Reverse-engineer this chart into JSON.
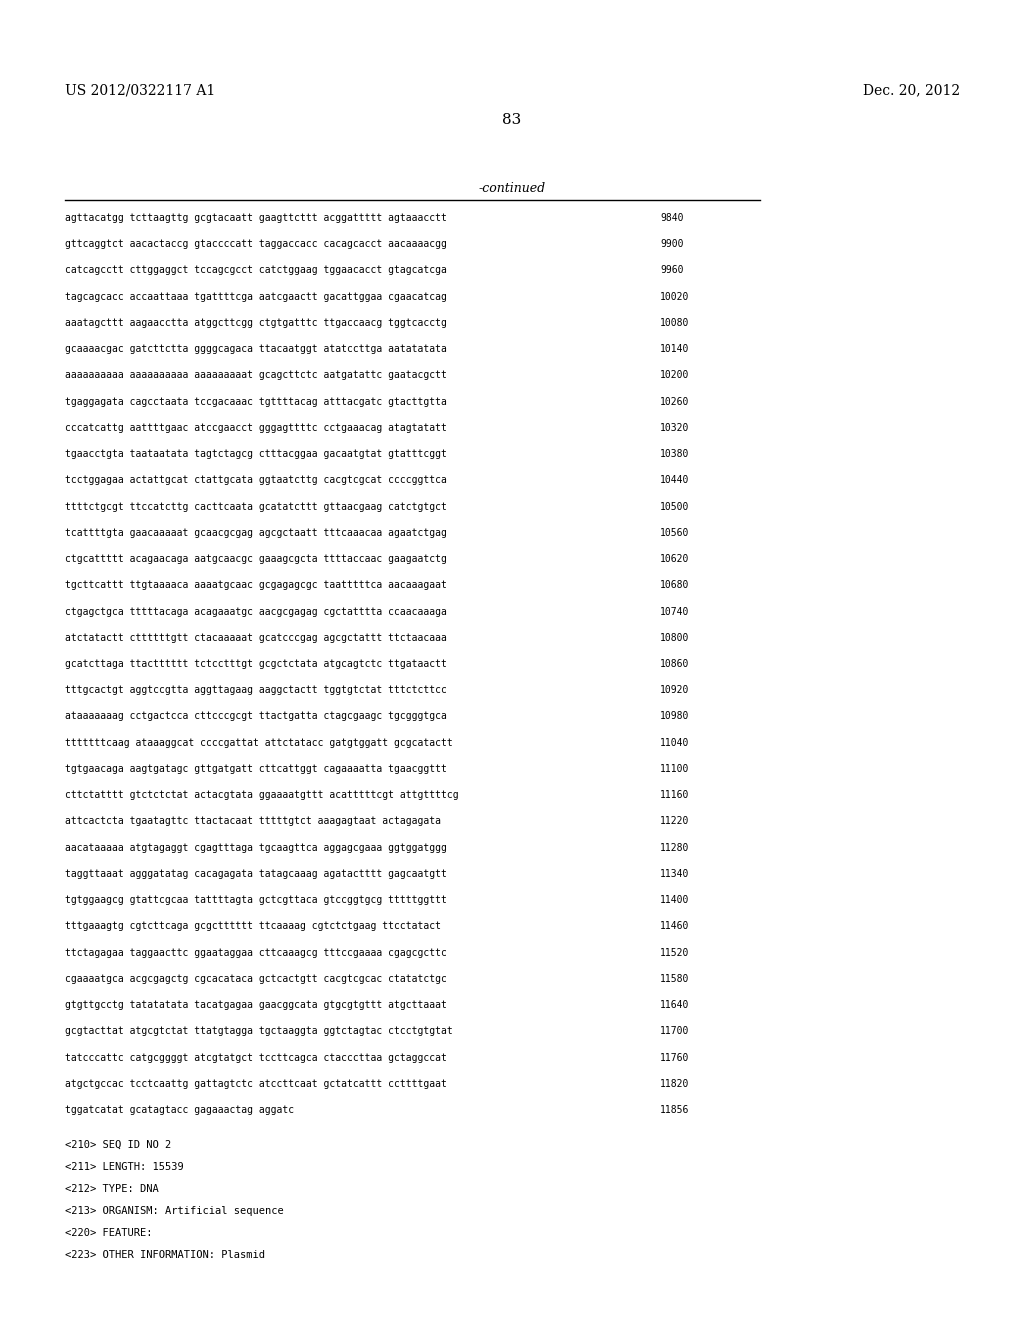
{
  "background_color": "#ffffff",
  "header_left": "US 2012/0322117 A1",
  "header_right": "Dec. 20, 2012",
  "page_number": "83",
  "continued_label": "-continued",
  "sequence_lines": [
    [
      "agttacatgg tcttaagttg gcgtacaatt gaagttcttt acggattttt agtaaacctt",
      "9840"
    ],
    [
      "gttcaggtct aacactaccg gtaccccatt taggaccacc cacagcacct aacaaaacgg",
      "9900"
    ],
    [
      "catcagcctt cttggaggct tccagcgcct catctggaag tggaacacct gtagcatcga",
      "9960"
    ],
    [
      "tagcagcacc accaattaaa tgattttcga aatcgaactt gacattggaa cgaacatcag",
      "10020"
    ],
    [
      "aaatagcttt aagaacctta atggcttcgg ctgtgatttc ttgaccaacg tggtcacctg",
      "10080"
    ],
    [
      "gcaaaacgac gatcttctta ggggcagaca ttacaatggt atatccttga aatatatata",
      "10140"
    ],
    [
      "aaaaaaaaaa aaaaaaaaaa aaaaaaaaat gcagcttctc aatgatattc gaatacgctt",
      "10200"
    ],
    [
      "tgaggagata cagcctaata tccgacaaac tgttttacag atttacgatc gtacttgtta",
      "10260"
    ],
    [
      "cccatcattg aattttgaac atccgaacct gggagttttc cctgaaacag atagtatatt",
      "10320"
    ],
    [
      "tgaacctgta taataatata tagtctagcg ctttacggaa gacaatgtat gtatttcggt",
      "10380"
    ],
    [
      "tcctggagaa actattgcat ctattgcata ggtaatcttg cacgtcgcat ccccggttca",
      "10440"
    ],
    [
      "ttttctgcgt ttccatcttg cacttcaata gcatatcttt gttaacgaag catctgtgct",
      "10500"
    ],
    [
      "tcattttgta gaacaaaaat gcaacgcgag agcgctaatt tttcaaacaa agaatctgag",
      "10560"
    ],
    [
      "ctgcattttt acagaacaga aatgcaacgc gaaagcgcta ttttaccaac gaagaatctg",
      "10620"
    ],
    [
      "tgcttcattt ttgtaaaaca aaaatgcaac gcgagagcgc taatttttca aacaaagaat",
      "10680"
    ],
    [
      "ctgagctgca tttttacaga acagaaatgc aacgcgagag cgctatttta ccaacaaaga",
      "10740"
    ],
    [
      "atctatactt cttttttgtt ctacaaaaat gcatcccgag agcgctattt ttctaacaaa",
      "10800"
    ],
    [
      "gcatcttaga ttactttttt tctcctttgt gcgctctata atgcagtctc ttgataactt",
      "10860"
    ],
    [
      "tttgcactgt aggtccgtta aggttagaag aaggctactt tggtgtctat tttctcttcc",
      "10920"
    ],
    [
      "ataaaaaaag cctgactcca cttcccgcgt ttactgatta ctagcgaagc tgcgggtgca",
      "10980"
    ],
    [
      "tttttttcaag ataaaggcat ccccgattat attctatacc gatgtggatt gcgcatactt",
      "11040"
    ],
    [
      "tgtgaacaga aagtgatagc gttgatgatt cttcattggt cagaaaatta tgaacggttt",
      "11100"
    ],
    [
      "cttctatttt gtctctctat actacgtata ggaaaatgttt acatttttcgt attgttttcg",
      "11160"
    ],
    [
      "attcactcta tgaatagttc ttactacaat tttttgtct aaagagtaat actagagata",
      "11220"
    ],
    [
      "aacataaaaa atgtagaggt cgagtttaga tgcaagttca aggagcgaaa ggtggatggg",
      "11280"
    ],
    [
      "taggttaaat agggatatag cacagagata tatagcaaag agatactttt gagcaatgtt",
      "11340"
    ],
    [
      "tgtggaagcg gtattcgcaa tattttagta gctcgttaca gtccggtgcg tttttggttt",
      "11400"
    ],
    [
      "tttgaaagtg cgtcttcaga gcgctttttt ttcaaaag cgtctctgaag ttcctatact",
      "11460"
    ],
    [
      "ttctagagaa taggaacttc ggaataggaa cttcaaagcg tttccgaaaa cgagcgcttc",
      "11520"
    ],
    [
      "cgaaaatgca acgcgagctg cgcacataca gctcactgtt cacgtcgcac ctatatctgc",
      "11580"
    ],
    [
      "gtgttgcctg tatatatata tacatgagaa gaacggcata gtgcgtgttt atgcttaaat",
      "11640"
    ],
    [
      "gcgtacttat atgcgtctat ttatgtagga tgctaaggta ggtctagtac ctcctgtgtat",
      "11700"
    ],
    [
      "tatcccattc catgcggggt atcgtatgct tccttcagca ctacccttaa gctaggccat",
      "11760"
    ],
    [
      "atgctgccac tcctcaattg gattagtctc atccttcaat gctatcattt ccttttgaat",
      "11820"
    ],
    [
      "tggatcatat gcatagtacc gagaaactag aggatc",
      "11856"
    ]
  ],
  "footer_lines": [
    "<210> SEQ ID NO 2",
    "<211> LENGTH: 15539",
    "<212> TYPE: DNA",
    "<213> ORGANISM: Artificial sequence",
    "<220> FEATURE:",
    "<223> OTHER INFORMATION: Plasmid"
  ]
}
